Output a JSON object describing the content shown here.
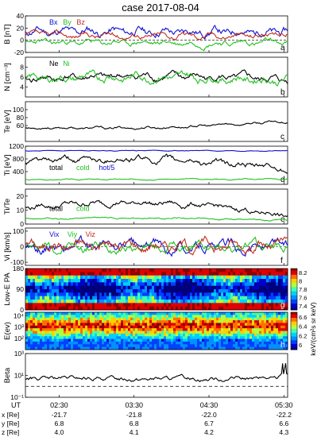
{
  "title": "case 2017-08-04",
  "colors": {
    "black": "#000000",
    "blue": "#1010d0",
    "green": "#22c022",
    "red": "#c03020",
    "frame": "#000000"
  },
  "panels": [
    {
      "id": "a",
      "ylabel": "B [nT]",
      "letter": "a",
      "ylim": [
        -20,
        40
      ],
      "ticks": [
        "-20",
        "0",
        "20",
        "40"
      ],
      "scale": "linear",
      "legend": [
        {
          "text": "Bx",
          "color": "#1010d0"
        },
        {
          "text": "By",
          "color": "#22c022"
        },
        {
          "text": "Bz",
          "color": "#c03020"
        }
      ]
    },
    {
      "id": "b",
      "ylabel": "N [cm⁻³]",
      "letter": "b",
      "ylim": [
        2,
        10
      ],
      "ticks": [
        "4",
        "6",
        "8"
      ],
      "scale": "linear",
      "legend": [
        {
          "text": "Ne",
          "color": "#000000"
        },
        {
          "text": "Ni",
          "color": "#22c022"
        }
      ]
    },
    {
      "id": "c",
      "ylabel": "Te [eV]",
      "letter": "c",
      "ylim": [
        20,
        120
      ],
      "ticks": [
        "60",
        "80",
        "100"
      ],
      "scale": "linear",
      "legend": []
    },
    {
      "id": "d",
      "ylabel": "Ti [eV]",
      "letter": "d",
      "ylim": [
        0,
        1200
      ],
      "ticks": [
        "400",
        "800",
        "1200"
      ],
      "scale": "linear",
      "legend": [
        {
          "text": "total",
          "color": "#000000"
        },
        {
          "text": "cold",
          "color": "#22c022"
        },
        {
          "text": "hot/5",
          "color": "#1010d0"
        }
      ]
    },
    {
      "id": "e",
      "ylabel": "Ti/Te",
      "letter": "e",
      "ylim": [
        0,
        25
      ],
      "ticks": [
        "0",
        "10",
        "20"
      ],
      "scale": "linear",
      "legend": [
        {
          "text": "total",
          "color": "#000000"
        },
        {
          "text": "cold",
          "color": "#22c022"
        }
      ]
    },
    {
      "id": "f",
      "ylabel": "Vi [km/s]",
      "letter": "f",
      "ylim": [
        -120,
        120
      ],
      "ticks": [
        "-100",
        "0",
        "100"
      ],
      "scale": "linear",
      "legend": [
        {
          "text": "Vix",
          "color": "#1010d0"
        },
        {
          "text": "Viy",
          "color": "#22c022"
        },
        {
          "text": "Viz",
          "color": "#c03020"
        }
      ]
    },
    {
      "id": "g",
      "ylabel": "Low-E PA",
      "letter": "g",
      "ylim": [
        0,
        180
      ],
      "ticks": [
        "0",
        "90",
        "180"
      ],
      "scale": "linear",
      "legend": []
    },
    {
      "id": "h",
      "ylabel": "E(ev)",
      "letter": "h",
      "ylim": [
        1,
        4.3
      ],
      "ticks": [
        "10²",
        "10³",
        "10⁴"
      ],
      "scale": "log",
      "legend": []
    },
    {
      "id": "i",
      "ylabel": "Beta",
      "letter": "",
      "ylim": [
        -1,
        3
      ],
      "ticks": [
        "10⁻¹",
        "10¹",
        "10³"
      ],
      "scale": "log",
      "legend": []
    }
  ],
  "colorbars": [
    {
      "panel": "g",
      "ticks": [
        "7.4",
        "7.6",
        "7.8",
        "8",
        "8.2"
      ],
      "range": [
        7.3,
        8.3
      ]
    },
    {
      "panel": "h",
      "ticks": [
        "6",
        "6.2",
        "6.4",
        "6.6"
      ],
      "range": [
        6.0,
        6.65
      ]
    }
  ],
  "colorbar_label": "keV/(cm²s sr keV)",
  "time_axis": {
    "ut_label": "UT",
    "ticks": [
      "02:30",
      "03:30",
      "04:30",
      "05:30"
    ]
  },
  "ephemeris": {
    "rows": [
      {
        "label": "x [Re]",
        "values": [
          "-21.7",
          "-21.8",
          "-22.0",
          "-22.2"
        ]
      },
      {
        "label": "y [Re]",
        "values": [
          "6.8",
          "6.8",
          "6.7",
          "6.6"
        ]
      },
      {
        "label": "z [Re]",
        "values": [
          "4.0",
          "4.1",
          "4.2",
          "4.3"
        ]
      }
    ]
  },
  "chart_data": {
    "type": "line",
    "title": "case 2017-08-04",
    "x_unit": "UT hours",
    "x_range": [
      2.05,
      5.55
    ],
    "series_params": [
      {
        "panel": "a",
        "name": "Bx",
        "color": "#1010d0",
        "base": 14,
        "amp": 9,
        "seed": 11,
        "trend": [
          0,
          0
        ]
      },
      {
        "panel": "a",
        "name": "By",
        "color": "#22c022",
        "base": -4,
        "amp": 6,
        "seed": 23,
        "trend": [
          0,
          0
        ]
      },
      {
        "panel": "a",
        "name": "Bz",
        "color": "#c03020",
        "base": 8,
        "amp": 6,
        "seed": 37,
        "trend": [
          0,
          0
        ]
      },
      {
        "panel": "b",
        "name": "Ne",
        "color": "#000000",
        "base": 5.6,
        "amp": 0.9,
        "seed": 41,
        "trend": [
          0.6,
          -0.2
        ]
      },
      {
        "panel": "b",
        "name": "Ni",
        "color": "#22c022",
        "base": 5.6,
        "amp": 1.1,
        "seed": 43,
        "trend": [
          0.6,
          -0.2
        ]
      },
      {
        "panel": "c",
        "name": "Te",
        "color": "#000000",
        "base": 55,
        "amp": 4,
        "seed": 53,
        "trend": [
          -8,
          16
        ]
      },
      {
        "panel": "d",
        "name": "total",
        "color": "#000000",
        "base": 700,
        "amp": 120,
        "seed": 61,
        "trend": [
          180,
          -220
        ]
      },
      {
        "panel": "d",
        "name": "cold",
        "color": "#22c022",
        "base": 150,
        "amp": 20,
        "seed": 67,
        "trend": [
          0,
          20
        ]
      },
      {
        "panel": "d",
        "name": "hot/5",
        "color": "#1010d0",
        "base": 1060,
        "amp": 15,
        "seed": 71,
        "trend": [
          0,
          0
        ]
      },
      {
        "panel": "e",
        "name": "total",
        "color": "#000000",
        "base": 12,
        "amp": 2.5,
        "seed": 79,
        "trend": [
          6,
          -6
        ]
      },
      {
        "panel": "e",
        "name": "cold",
        "color": "#22c022",
        "base": 4,
        "amp": 0.7,
        "seed": 83,
        "trend": [
          1,
          -1.5
        ]
      },
      {
        "panel": "f",
        "name": "Vix",
        "color": "#1010d0",
        "base": 0,
        "amp": 45,
        "seed": 89,
        "trend": [
          0,
          0
        ]
      },
      {
        "panel": "f",
        "name": "Viy",
        "color": "#22c022",
        "base": 0,
        "amp": 40,
        "seed": 97,
        "trend": [
          0,
          0
        ]
      },
      {
        "panel": "f",
        "name": "Viz",
        "color": "#c03020",
        "base": 10,
        "amp": 45,
        "seed": 101,
        "trend": [
          0,
          0
        ]
      },
      {
        "panel": "i",
        "name": "Beta",
        "color": "#000000",
        "base": 0.7,
        "amp": 0.25,
        "seed": 107,
        "trend": [
          0.2,
          0
        ]
      }
    ],
    "spectrograms": [
      {
        "panel": "g",
        "type": "heatmap",
        "seed": 131
      },
      {
        "panel": "h",
        "type": "heatmap",
        "seed": 137
      }
    ]
  }
}
